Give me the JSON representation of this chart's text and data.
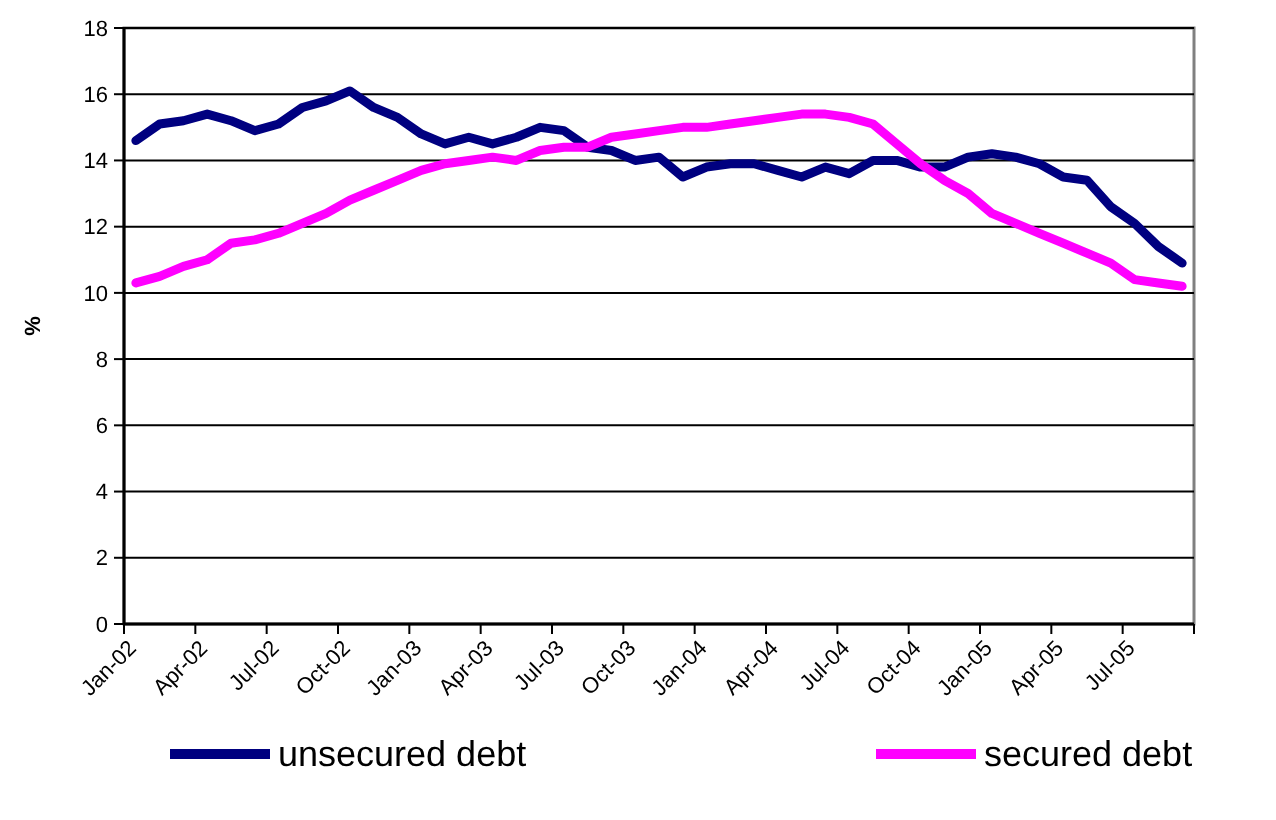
{
  "chart_data": {
    "type": "line",
    "ylabel": "%",
    "categories": [
      "Jan-02",
      null,
      null,
      "Apr-02",
      null,
      null,
      "Jul-02",
      null,
      null,
      "Oct-02",
      null,
      null,
      "Jan-03",
      null,
      null,
      "Apr-03",
      null,
      null,
      "Jul-03",
      null,
      null,
      "Oct-03",
      null,
      null,
      "Jan-04",
      null,
      null,
      "Apr-04",
      null,
      null,
      "Jul-04",
      null,
      null,
      "Oct-04",
      null,
      null,
      "Jan-05",
      null,
      null,
      "Apr-05",
      null,
      null,
      "Jul-05",
      null,
      null
    ],
    "series": [
      {
        "name": "unsecured debt",
        "color": "#000080",
        "values": [
          14.6,
          15.1,
          15.2,
          15.4,
          15.2,
          14.9,
          15.1,
          15.6,
          15.8,
          16.1,
          15.6,
          15.3,
          14.8,
          14.5,
          14.7,
          14.5,
          14.7,
          15.0,
          14.9,
          14.4,
          14.3,
          14.0,
          14.1,
          13.5,
          13.8,
          13.9,
          13.9,
          13.7,
          13.5,
          13.8,
          13.6,
          14.0,
          14.0,
          13.8,
          13.8,
          14.1,
          14.2,
          14.1,
          13.9,
          13.5,
          13.4,
          12.6,
          12.1,
          11.4,
          10.9
        ]
      },
      {
        "name": "secured debt",
        "color": "#ff00ff",
        "values": [
          10.3,
          10.5,
          10.8,
          11.0,
          11.5,
          11.6,
          11.8,
          12.1,
          12.4,
          12.8,
          13.1,
          13.4,
          13.7,
          13.9,
          14.0,
          14.1,
          14.0,
          14.3,
          14.4,
          14.4,
          14.7,
          14.8,
          14.9,
          15.0,
          15.0,
          15.1,
          15.2,
          15.3,
          15.4,
          15.4,
          15.3,
          15.1,
          14.5,
          13.9,
          13.4,
          13.0,
          12.4,
          12.1,
          11.8,
          11.5,
          11.2,
          10.9,
          10.4,
          10.3,
          10.2
        ]
      }
    ],
    "ylim": [
      0,
      18
    ],
    "yticks": [
      0,
      2,
      4,
      6,
      8,
      10,
      12,
      14,
      16,
      18
    ],
    "grid": "y",
    "legend": "bottom",
    "marker": "none",
    "line_style": "solid"
  }
}
